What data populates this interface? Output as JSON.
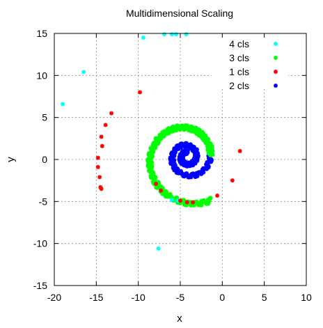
{
  "chart_data": {
    "type": "scatter",
    "title": "Multidimensional Scaling",
    "xlabel": "x",
    "ylabel": "y",
    "xlim": [
      -20,
      10
    ],
    "ylim": [
      -15,
      15
    ],
    "xticks": [
      -20,
      -15,
      -10,
      -5,
      0,
      5,
      10
    ],
    "yticks": [
      -15,
      -10,
      -5,
      0,
      5,
      10,
      15
    ],
    "grid": true,
    "legend_position": "top-right",
    "series": [
      {
        "name": "4 cls",
        "color": "#00ffff",
        "marker": "star",
        "points": [
          [
            -19.0,
            6.6
          ],
          [
            -16.5,
            10.4
          ],
          [
            -9.4,
            14.5
          ],
          [
            -6.9,
            14.9
          ],
          [
            -6.0,
            14.9
          ],
          [
            -5.5,
            14.9
          ],
          [
            -4.3,
            14.9
          ],
          [
            -7.6,
            -10.6
          ],
          [
            3.6,
            12.6
          ],
          [
            3.3,
            12.8
          ],
          [
            -5.3,
            -4.9
          ],
          [
            -6.0,
            -4.8
          ]
        ]
      },
      {
        "name": "3 cls",
        "color": "#00ff00",
        "marker": "star",
        "points": []
      },
      {
        "name": "1 cls",
        "color": "#ff0000",
        "marker": "star",
        "points": [
          [
            -7.9,
            -2.9
          ],
          [
            -7.3,
            -3.7
          ],
          [
            -9.8,
            8.0
          ],
          [
            -13.2,
            5.5
          ],
          [
            -13.9,
            4.1
          ],
          [
            -14.8,
            0.2
          ],
          [
            -14.8,
            -0.9
          ],
          [
            -14.6,
            -2.1
          ],
          [
            -14.5,
            -3.3
          ],
          [
            -14.3,
            1.6
          ],
          [
            -14.4,
            2.7
          ],
          [
            -5.0,
            -4.9
          ],
          [
            -4.2,
            -5.1
          ],
          [
            -3.5,
            -5.1
          ],
          [
            1.2,
            -2.5
          ],
          [
            -0.6,
            -4.3
          ],
          [
            2.1,
            1.0
          ],
          [
            6.6,
            10.1
          ],
          [
            -14.4,
            -3.5
          ]
        ]
      },
      {
        "name": "2 cls",
        "color": "#0000ff",
        "marker": "star",
        "points": [
          [
            6.2,
            9.1
          ]
        ]
      }
    ],
    "spiral_inner": {
      "a": 0.45,
      "b": 0.1445,
      "theta_start": 1.42,
      "theta_end": 12.64
    },
    "spiral_outer": {
      "a": 0.45,
      "b": 0.1445,
      "theta_start": 12.64,
      "theta_end": 17.8
    }
  }
}
